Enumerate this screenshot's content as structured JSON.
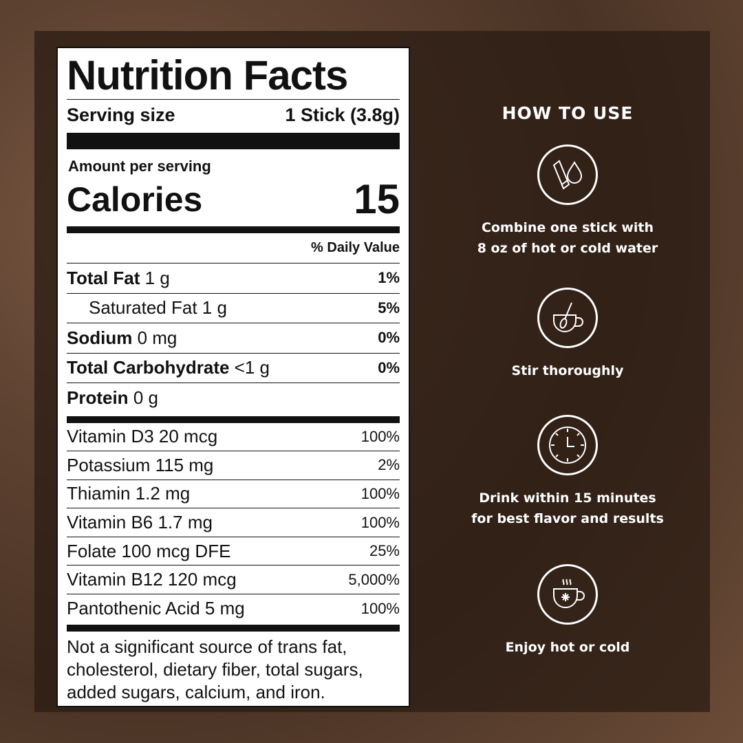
{
  "label": {
    "title": "Nutrition Facts",
    "serving_label": "Serving size",
    "serving_value": "1 Stick (3.8g)",
    "amount_per_serving": "Amount per serving",
    "calories_label": "Calories",
    "calories_value": "15",
    "daily_value_header": "% Daily Value",
    "nutrients": [
      {
        "name": "Total Fat",
        "amount": "1 g",
        "pct": "1%",
        "bold": true
      },
      {
        "name": "Saturated Fat",
        "amount": "1 g",
        "pct": "5%",
        "bold": false
      },
      {
        "name": "Sodium",
        "amount": "0 mg",
        "pct": "0%",
        "bold": true
      },
      {
        "name": "Total Carbohydrate",
        "amount": "<1 g",
        "pct": "0%",
        "bold": true
      },
      {
        "name": "Protein",
        "amount": "0 g",
        "pct": "",
        "bold": true
      }
    ],
    "vitamins": [
      {
        "name": "Vitamin D3 20 mcg",
        "pct": "100%"
      },
      {
        "name": "Potassium 115 mg",
        "pct": "2%"
      },
      {
        "name": "Thiamin 1.2 mg",
        "pct": "100%"
      },
      {
        "name": "Vitamin B6 1.7 mg",
        "pct": "100%"
      },
      {
        "name": "Folate 100 mcg DFE",
        "pct": "25%"
      },
      {
        "name": "Vitamin B12 120 mcg",
        "pct": "5,000%"
      },
      {
        "name": "Pantothenic Acid 5 mg",
        "pct": "100%"
      }
    ],
    "footnote": "Not a significant source of trans fat, cholesterol, dietary fiber, total sugars, added sugars, calcium, and iron."
  },
  "how_to_use": {
    "title": "HOW TO USE",
    "steps": [
      {
        "icon": "stick-and-water-drop-icon",
        "line1": "Combine one stick with",
        "line2": "8 oz of hot or cold water"
      },
      {
        "icon": "cup-with-spoon-icon",
        "line1": "Stir thoroughly",
        "line2": ""
      },
      {
        "icon": "clock-icon",
        "line1": "Drink within 15 minutes",
        "line2": "for best flavor and results"
      },
      {
        "icon": "hot-cold-cup-icon",
        "line1": "Enjoy hot or cold",
        "line2": ""
      }
    ]
  }
}
